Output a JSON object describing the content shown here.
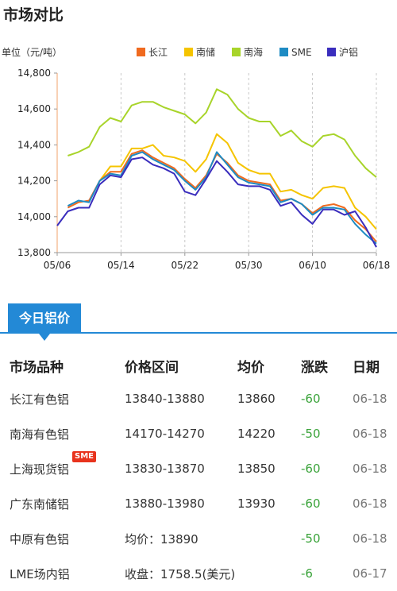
{
  "header": {
    "title": "市场对比"
  },
  "chart_data": {
    "type": "line",
    "ylabel": "单位（元/吨）",
    "ylim": [
      13800,
      14800
    ],
    "yticks": [
      13800,
      14000,
      14200,
      14400,
      14600,
      14800
    ],
    "xtick_labels": [
      "05/06",
      "05/14",
      "05/22",
      "05/30",
      "06/10",
      "06/18"
    ],
    "xtick_index": [
      0,
      6,
      12,
      18,
      24,
      30
    ],
    "legend_position": "top-right",
    "grid": "vertical dashed",
    "series": [
      {
        "name": "长江",
        "color": "#f06a1f",
        "values": [
          null,
          14050,
          14080,
          14090,
          14200,
          14250,
          14250,
          14350,
          14370,
          14330,
          14300,
          14270,
          14210,
          14160,
          14230,
          14350,
          14300,
          14230,
          14200,
          14190,
          14180,
          14090,
          14100,
          14070,
          14020,
          14060,
          14070,
          14050,
          13980,
          13930,
          13860
        ]
      },
      {
        "name": "南储",
        "color": "#f5c400",
        "values": [
          null,
          null,
          null,
          null,
          14200,
          14280,
          14280,
          14380,
          14380,
          14400,
          14340,
          14330,
          14310,
          14250,
          14320,
          14460,
          14410,
          14300,
          14260,
          14240,
          14240,
          14140,
          14150,
          14120,
          14100,
          14160,
          14170,
          14160,
          14050,
          14000,
          13930
        ]
      },
      {
        "name": "南海",
        "color": "#a8d42a",
        "values": [
          null,
          14340,
          14360,
          14390,
          14500,
          14550,
          14530,
          14620,
          14640,
          14640,
          14610,
          14590,
          14570,
          14520,
          14580,
          14710,
          14680,
          14600,
          14550,
          14530,
          14530,
          14450,
          14480,
          14420,
          14390,
          14450,
          14460,
          14430,
          14340,
          14270,
          14220
        ]
      },
      {
        "name": "SME",
        "color": "#1e8bc3",
        "values": [
          null,
          14060,
          14090,
          14080,
          14200,
          14240,
          14230,
          14340,
          14360,
          14320,
          14290,
          14260,
          14200,
          14150,
          14220,
          14360,
          14290,
          14220,
          14190,
          14180,
          14170,
          14080,
          14100,
          14070,
          14010,
          14050,
          14050,
          14040,
          13960,
          13900,
          13850
        ]
      },
      {
        "name": "沪铝",
        "color": "#3a2dbd",
        "values": [
          13950,
          14030,
          14050,
          14050,
          14180,
          14230,
          14220,
          14320,
          14330,
          14290,
          14270,
          14240,
          14140,
          14120,
          14210,
          14310,
          14250,
          14180,
          14170,
          14170,
          14150,
          14060,
          14080,
          14010,
          13960,
          14040,
          14040,
          14010,
          14030,
          13940,
          13830
        ]
      }
    ]
  },
  "section": {
    "tab_label": "今日铝价",
    "sme_tag": "SME"
  },
  "table": {
    "headers": [
      "市场品种",
      "价格区间",
      "均价",
      "涨跌",
      "日期"
    ],
    "rows": [
      {
        "name": "长江有色铝",
        "range": "13840-13880",
        "avg": "13860",
        "change": "-60",
        "date": "06-18"
      },
      {
        "name": "南海有色铝",
        "range": "14170-14270",
        "avg": "14220",
        "change": "-50",
        "date": "06-18"
      },
      {
        "name": "上海现货铝",
        "range": "13830-13870",
        "avg": "13850",
        "change": "-60",
        "date": "06-18"
      },
      {
        "name": "广东南储铝",
        "range": "13880-13980",
        "avg": "13930",
        "change": "-60",
        "date": "06-18"
      },
      {
        "name": "中原有色铝",
        "range": "均价：13890",
        "avg": "",
        "change": "-50",
        "date": "06-18"
      },
      {
        "name": "LME场内铝",
        "range": "收盘：1758.5(美元)",
        "avg": "",
        "change": "-6",
        "date": "06-17"
      }
    ]
  }
}
